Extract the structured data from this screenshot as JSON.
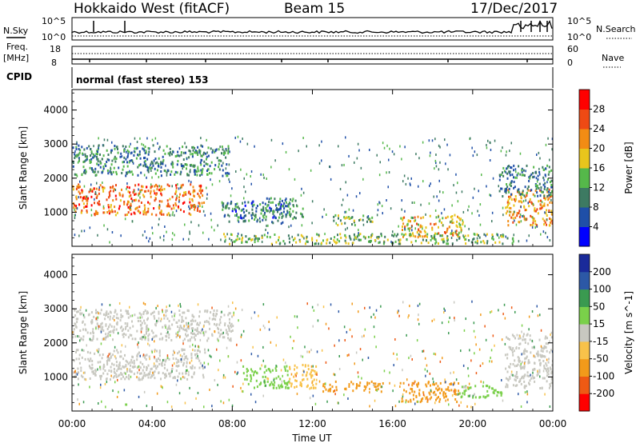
{
  "header": {
    "station": "Hokkaido West (fitACF)",
    "beam": "Beam 15",
    "date": "17/Dec/2017"
  },
  "strips": {
    "nsky_label": "N.Sky",
    "nsearch_label": "N.Search",
    "nsky_ticks": [
      "10^5",
      "10^0"
    ],
    "nsearch_ticks": [
      "10^5",
      "10^0"
    ],
    "freq_label": "Freq.",
    "freq_unit": "[MHz]",
    "freq_ticks": [
      "18",
      "8"
    ],
    "nave_label": "Nave",
    "nave_ticks": [
      "60",
      "0"
    ],
    "cpid_label": "CPID",
    "cpid_text": "normal (fast stereo) 153"
  },
  "colors": {
    "power_scale": [
      "#0000ff",
      "#1f4fa8",
      "#3d7a62",
      "#55b84a",
      "#e8c51c",
      "#f28c14",
      "#ee4a14",
      "#ff0000"
    ],
    "velocity_scale": [
      "#ff0000",
      "#ee5a14",
      "#f29a1a",
      "#f8c24a",
      "#c8c8c0",
      "#7ad04a",
      "#3a9a50",
      "#2c58a6",
      "#1a2a9a"
    ]
  },
  "chart_data": [
    {
      "type": "heatmap",
      "panel": "power",
      "xlabel": "Time UT",
      "ylabel": "Slant Range [km]",
      "colorbar_label": "Power [dB]",
      "colorbar_ticks": [
        "4",
        "8",
        "12",
        "16",
        "20",
        "24",
        "28"
      ],
      "xlim": [
        "00:00",
        "24:00"
      ],
      "ylim": [
        0,
        4600
      ],
      "x_ticks": [
        "00:00",
        "04:00",
        "08:00",
        "12:00",
        "16:00",
        "20:00",
        "00:00"
      ],
      "y_ticks": [
        1000,
        2000,
        3000,
        4000
      ],
      "regions": [
        {
          "t0": 0.0,
          "t1": 6.6,
          "r0": 950,
          "r1": 1850,
          "value": 24
        },
        {
          "t0": 0.0,
          "t1": 7.8,
          "r0": 2100,
          "r1": 3000,
          "value": 10
        },
        {
          "t0": 7.4,
          "t1": 10.5,
          "r0": 700,
          "r1": 1350,
          "value": 8
        },
        {
          "t0": 9.5,
          "t1": 11.5,
          "r0": 800,
          "r1": 1450,
          "value": 10
        },
        {
          "t0": 13.0,
          "t1": 15.0,
          "r0": 650,
          "r1": 950,
          "value": 14
        },
        {
          "t0": 16.3,
          "t1": 19.5,
          "r0": 300,
          "r1": 950,
          "value": 20
        },
        {
          "t0": 21.6,
          "t1": 24.0,
          "r0": 600,
          "r1": 1700,
          "value": 22
        },
        {
          "t0": 21.3,
          "t1": 24.0,
          "r0": 1500,
          "r1": 2400,
          "value": 10
        },
        {
          "t0": 7.5,
          "t1": 22.0,
          "r0": 100,
          "r1": 400,
          "value": 14
        }
      ]
    },
    {
      "type": "heatmap",
      "panel": "velocity",
      "xlabel": "Time UT",
      "ylabel": "Slant Range [km]",
      "colorbar_label": "Velocity [m s^-1]",
      "colorbar_ticks": [
        "-200",
        "-100",
        "-50",
        "-15",
        "15",
        "50",
        "100",
        "200"
      ],
      "xlim": [
        "00:00",
        "24:00"
      ],
      "ylim": [
        0,
        4600
      ],
      "x_ticks": [
        "00:00",
        "04:00",
        "08:00",
        "12:00",
        "16:00",
        "20:00",
        "00:00"
      ],
      "y_ticks": [
        1000,
        2000,
        3000,
        4000
      ],
      "regions": [
        {
          "t0": 0.0,
          "t1": 6.6,
          "r0": 950,
          "r1": 1850,
          "value": 0
        },
        {
          "t0": 0.0,
          "t1": 8.0,
          "r0": 2100,
          "r1": 3000,
          "value": 0
        },
        {
          "t0": 8.5,
          "t1": 10.8,
          "r0": 700,
          "r1": 1350,
          "value": 30
        },
        {
          "t0": 10.8,
          "t1": 12.2,
          "r0": 700,
          "r1": 1400,
          "value": -40
        },
        {
          "t0": 12.5,
          "t1": 15.5,
          "r0": 600,
          "r1": 900,
          "value": -80
        },
        {
          "t0": 16.3,
          "t1": 19.3,
          "r0": 300,
          "r1": 900,
          "value": -60
        },
        {
          "t0": 19.3,
          "t1": 21.5,
          "r0": 400,
          "r1": 800,
          "value": 20
        },
        {
          "t0": 21.6,
          "t1": 24.0,
          "r0": 700,
          "r1": 2300,
          "value": 0
        }
      ]
    }
  ]
}
